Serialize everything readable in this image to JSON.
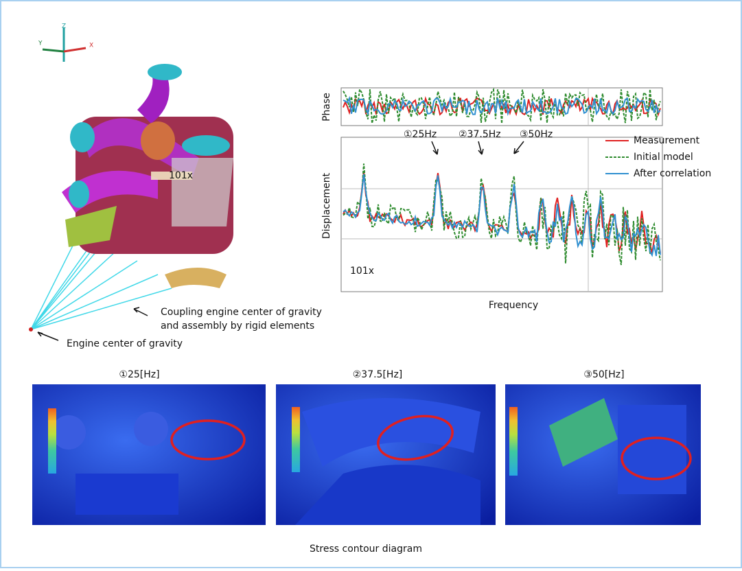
{
  "model": {
    "axis_labels": {
      "z": "Z",
      "x": "X",
      "y": "Y"
    },
    "magnification": "101x",
    "annotations": [
      {
        "lines": [
          "Coupling engine center of gravity",
          "and assembly by rigid elements"
        ]
      },
      {
        "lines": [
          "Engine center of gravity"
        ]
      }
    ]
  },
  "frf_chart": {
    "y_labels": [
      "Phase",
      "Displacement"
    ],
    "x_label": "Frequency",
    "peaks": [
      "①25Hz",
      "②37.5Hz",
      "③50Hz"
    ],
    "magnification": "101x",
    "legend": [
      {
        "name": "Measurement",
        "color": "#e02020"
      },
      {
        "name": "Initial model",
        "color": "#2e8b2e"
      },
      {
        "name": "After correlation",
        "color": "#2f8fd0"
      }
    ]
  },
  "stress": {
    "panels": [
      "①25[Hz]",
      "②37.5[Hz]",
      "③50[Hz]"
    ],
    "caption": "Stress contour diagram"
  }
}
